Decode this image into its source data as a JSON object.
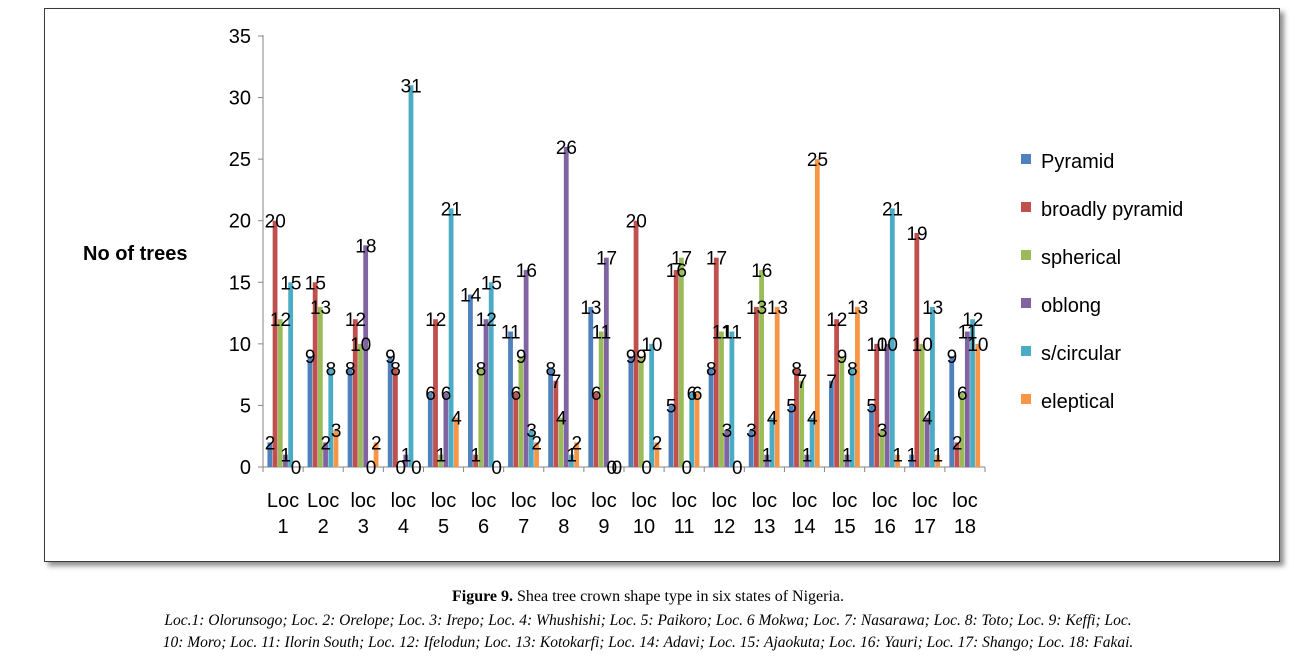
{
  "chart_data": {
    "type": "bar",
    "title": "",
    "ylabel": "No of trees",
    "xlabel": "",
    "ylim": [
      0,
      35
    ],
    "yticks": [
      0,
      5,
      10,
      15,
      20,
      25,
      30,
      35
    ],
    "grid": false,
    "legend_position": "right",
    "categories": [
      [
        "Loc",
        "1"
      ],
      [
        "Loc",
        "2"
      ],
      [
        "loc",
        "3"
      ],
      [
        "loc",
        "4"
      ],
      [
        "loc",
        "5"
      ],
      [
        "loc",
        "6"
      ],
      [
        "loc",
        "7"
      ],
      [
        "loc",
        "8"
      ],
      [
        "loc",
        "9"
      ],
      [
        "loc",
        "10"
      ],
      [
        "loc",
        "11"
      ],
      [
        "loc",
        "12"
      ],
      [
        "loc",
        "13"
      ],
      [
        "loc",
        "14"
      ],
      [
        "loc",
        "15"
      ],
      [
        "loc",
        "16"
      ],
      [
        "loc",
        "17"
      ],
      [
        "loc",
        "18"
      ]
    ],
    "series": [
      {
        "name": "Pyramid",
        "color": "#4F81BD",
        "values": [
          2,
          9,
          8,
          9,
          6,
          14,
          11,
          8,
          13,
          9,
          5,
          8,
          3,
          5,
          7,
          5,
          1,
          9
        ]
      },
      {
        "name": "broadly pyramid",
        "color": "#C0504D",
        "values": [
          20,
          15,
          12,
          8,
          12,
          1,
          6,
          7,
          6,
          20,
          16,
          17,
          13,
          8,
          12,
          10,
          19,
          2
        ]
      },
      {
        "name": "spherical",
        "color": "#9BBB59",
        "values": [
          12,
          13,
          10,
          0,
          1,
          8,
          9,
          4,
          11,
          9,
          17,
          11,
          16,
          7,
          9,
          3,
          10,
          6
        ]
      },
      {
        "name": "oblong",
        "color": "#8064A2",
        "values": [
          1,
          2,
          18,
          1,
          6,
          12,
          16,
          26,
          17,
          0,
          0,
          3,
          1,
          1,
          1,
          10,
          4,
          11
        ]
      },
      {
        "name": "s/circular",
        "color": "#4BACC6",
        "values": [
          15,
          8,
          0,
          31,
          21,
          15,
          3,
          1,
          0,
          10,
          6,
          11,
          4,
          4,
          8,
          21,
          13,
          12
        ]
      },
      {
        "name": "eleptical",
        "color": "#F79646",
        "values": [
          0,
          3,
          2,
          0,
          4,
          0,
          2,
          2,
          0,
          2,
          6,
          0,
          13,
          25,
          13,
          1,
          1,
          10
        ]
      }
    ]
  },
  "caption": {
    "label": "Figure 9.",
    "text": " Shea tree crown shape type in six states of Nigeria.",
    "line1": "Loc.1: Olorunsogo; Loc. 2: Orelope; Loc. 3: Irepo; Loc. 4: Whushishi; Loc. 5: Paikoro; Loc. 6 Mokwa; Loc. 7: Nasarawa; Loc. 8: Toto; Loc. 9: Keffi; Loc.",
    "line2": "10: Moro; Loc. 11: Ilorin South; Loc. 12: Ifelodun; Loc. 13: Kotokarfi; Loc. 14: Adavi; Loc. 15: Ajaokuta; Loc. 16: Yauri; Loc. 17: Shango; Loc. 18: Fakai."
  }
}
